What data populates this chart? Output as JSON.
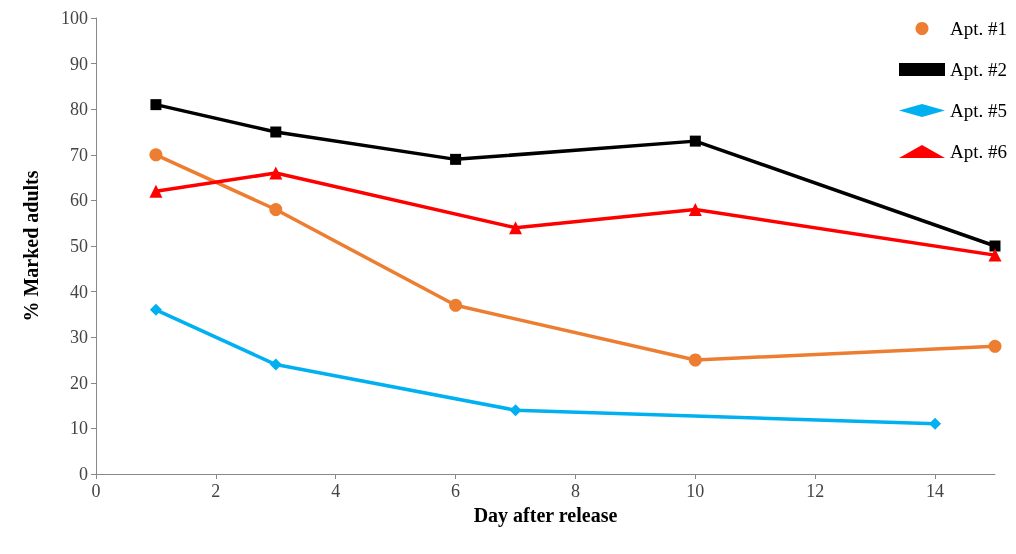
{
  "chart_data": {
    "type": "line",
    "xlabel": "Day after release",
    "ylabel": "% Marked adults",
    "xlim": [
      0,
      15
    ],
    "xticks": [
      0,
      2,
      4,
      6,
      8,
      10,
      12,
      14
    ],
    "ylim": [
      0,
      100
    ],
    "yticks": [
      0,
      10,
      20,
      30,
      40,
      50,
      60,
      70,
      80,
      90,
      100
    ],
    "grid": false,
    "legend": "top right",
    "line_style": "solid",
    "series": [
      {
        "name": "Apt. #1",
        "color": "#ed7d31",
        "marker": "circle",
        "x": [
          1,
          3,
          6,
          10,
          15
        ],
        "values": [
          70,
          58,
          37,
          25,
          28
        ]
      },
      {
        "name": "Apt. #2",
        "color": "#000000",
        "marker": "square",
        "x": [
          1,
          3,
          6,
          10,
          15
        ],
        "values": [
          81,
          75,
          69,
          73,
          50
        ]
      },
      {
        "name": "Apt. #5",
        "color": "#00b0f0",
        "marker": "diamond",
        "x": [
          1,
          3,
          7,
          14
        ],
        "values": [
          36,
          24,
          14,
          11
        ]
      },
      {
        "name": "Apt. #6",
        "color": "#ff0000",
        "marker": "triangle",
        "x": [
          1,
          3,
          7,
          10,
          15
        ],
        "values": [
          62,
          66,
          54,
          58,
          48
        ]
      }
    ]
  }
}
